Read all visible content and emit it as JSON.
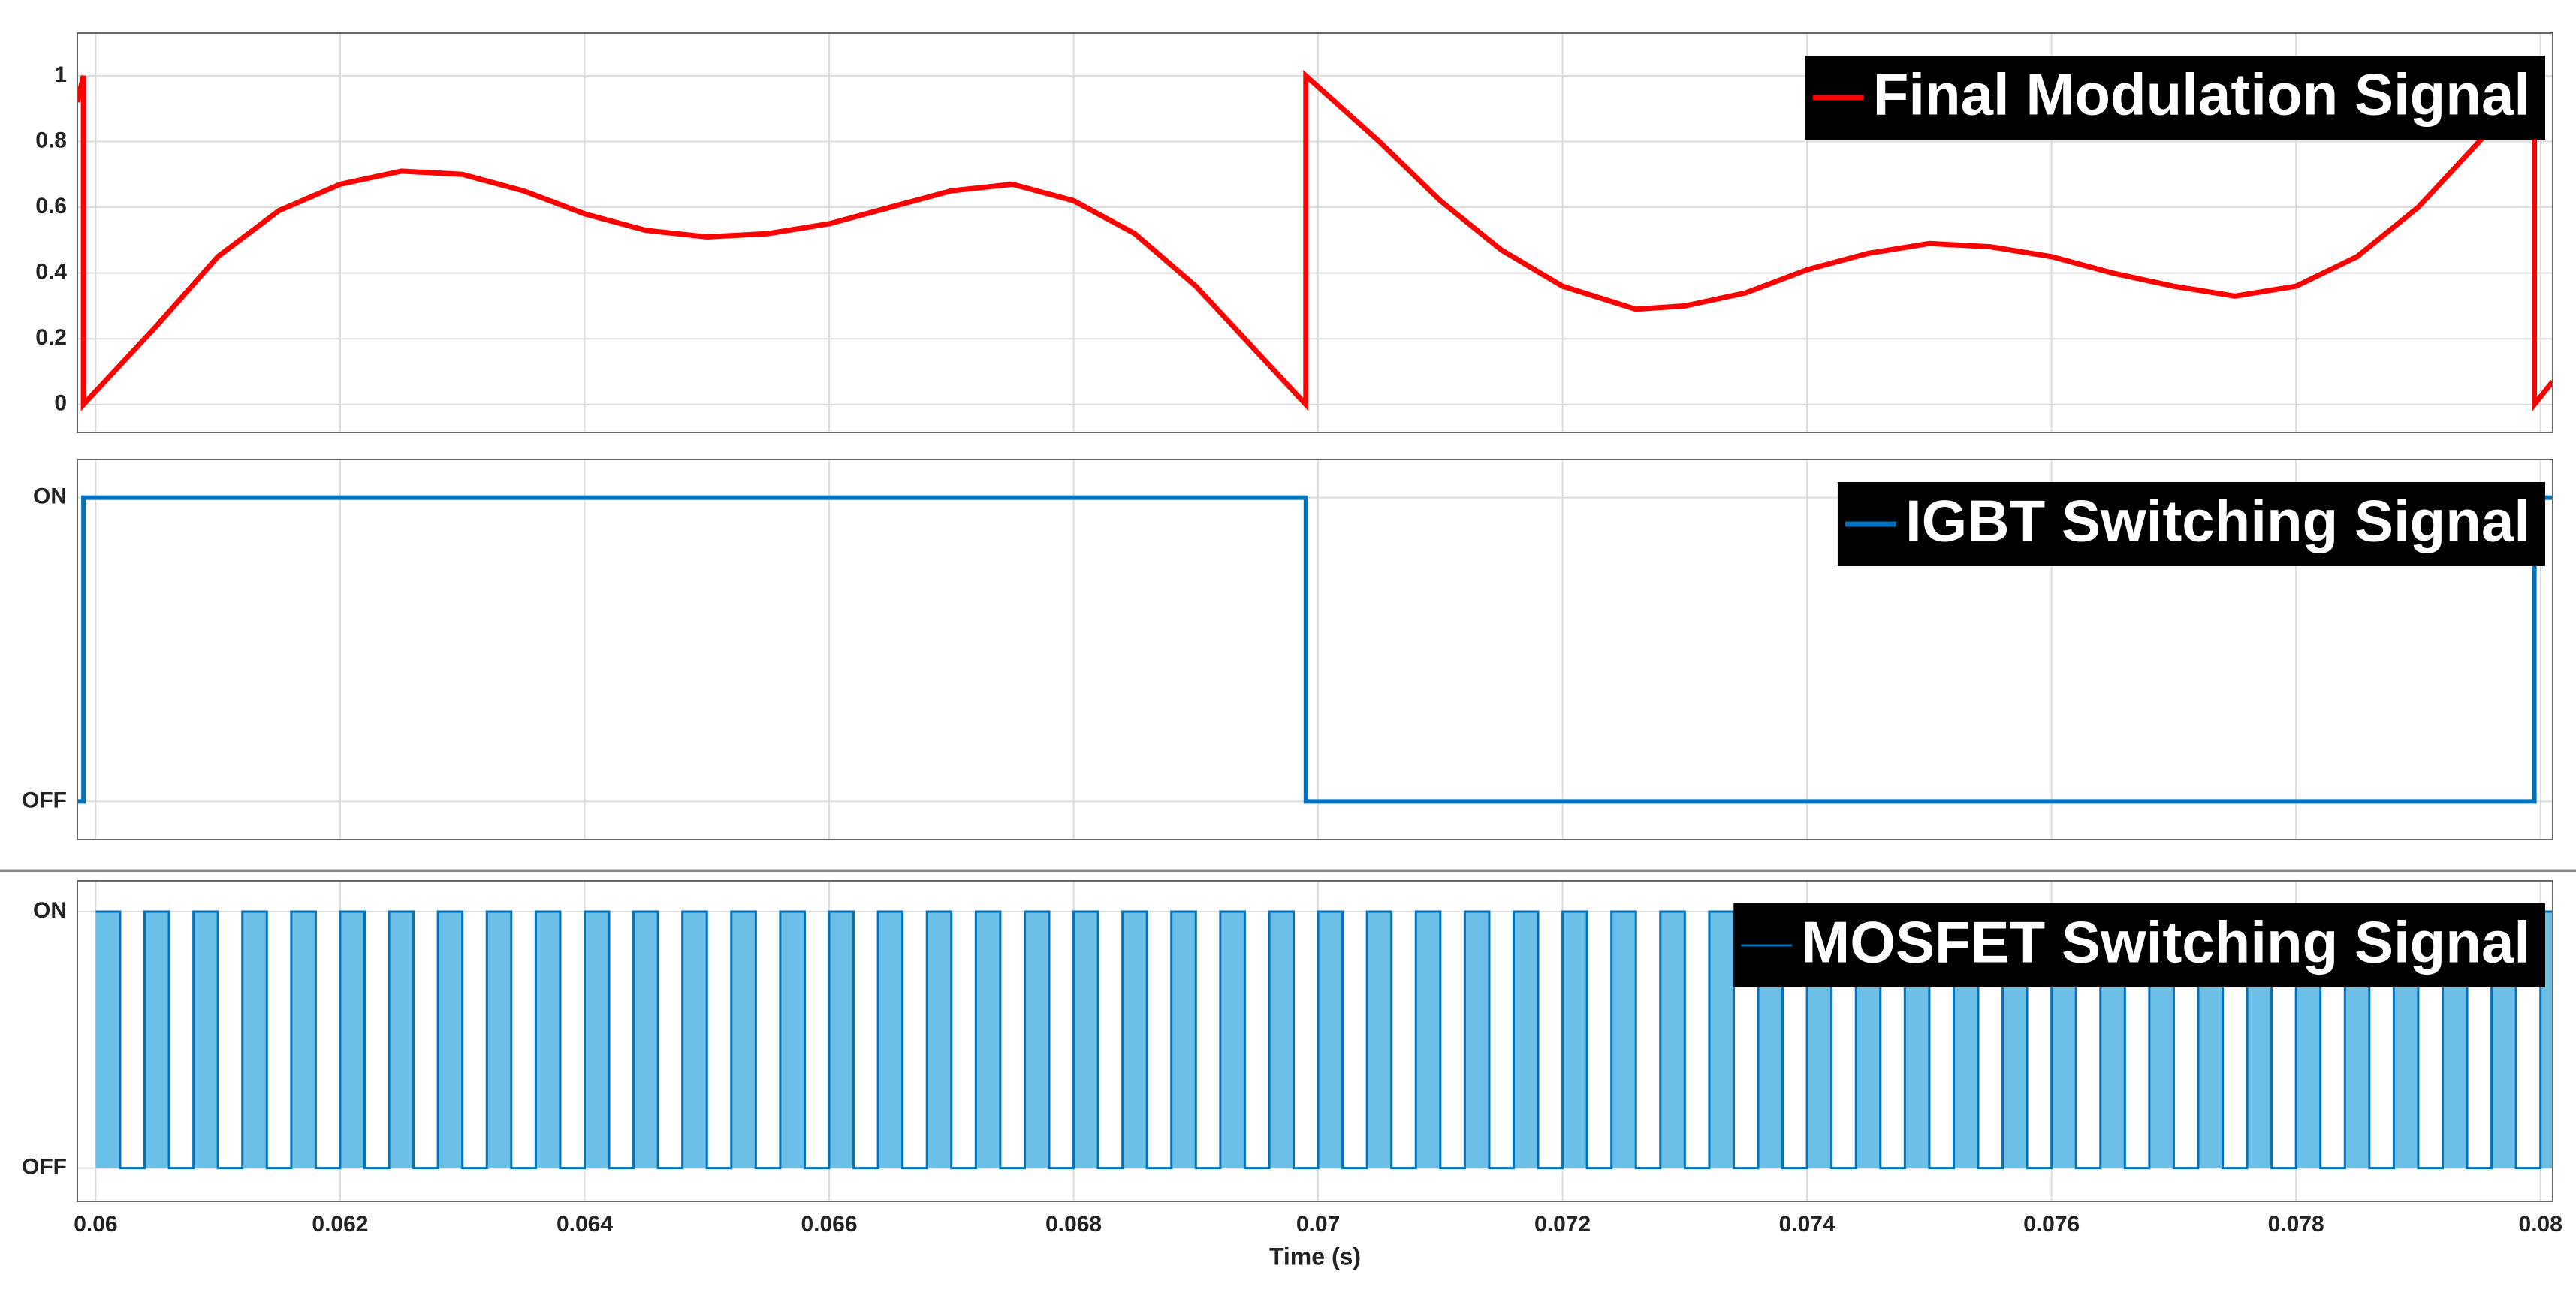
{
  "chart_data": [
    {
      "type": "line",
      "ylim": [
        -0.085,
        1.13
      ],
      "yticks": [
        0,
        0.2,
        0.4,
        0.6,
        0.8,
        1
      ],
      "xlim": [
        0.05985,
        0.0801
      ],
      "grid": true,
      "legend": "upper right",
      "series": [
        {
          "name": "Final Modulation Signal",
          "color": "#ff0000",
          "x": [
            0.05985,
            0.0599,
            0.0599,
            0.0605,
            0.061,
            0.0615,
            0.062,
            0.0625,
            0.063,
            0.0635,
            0.064,
            0.0645,
            0.065,
            0.0655,
            0.066,
            0.0665,
            0.067,
            0.0675,
            0.068,
            0.0685,
            0.069,
            0.0695,
            0.0699,
            0.0699,
            0.0705,
            0.071,
            0.0715,
            0.072,
            0.0726,
            0.073,
            0.0735,
            0.074,
            0.0745,
            0.075,
            0.0755,
            0.076,
            0.0765,
            0.077,
            0.0775,
            0.078,
            0.0785,
            0.079,
            0.0795,
            0.07995,
            0.07995,
            0.0801
          ],
          "values": [
            0.92,
            1,
            0,
            0.24,
            0.45,
            0.59,
            0.67,
            0.71,
            0.7,
            0.65,
            0.58,
            0.53,
            0.51,
            0.52,
            0.55,
            0.6,
            0.65,
            0.67,
            0.62,
            0.52,
            0.36,
            0.16,
            0,
            1,
            0.8,
            0.62,
            0.47,
            0.36,
            0.29,
            0.3,
            0.34,
            0.41,
            0.46,
            0.49,
            0.48,
            0.45,
            0.4,
            0.36,
            0.33,
            0.36,
            0.45,
            0.6,
            0.8,
            1,
            0,
            0.07
          ]
        }
      ]
    },
    {
      "type": "step",
      "ylim": [
        -0.125,
        1.125
      ],
      "yticks": [
        {
          "value": 1,
          "label": "ON"
        },
        {
          "value": 0,
          "label": "OFF"
        }
      ],
      "xlim": [
        0.05985,
        0.0801
      ],
      "grid": true,
      "legend": "upper right",
      "series": [
        {
          "name": "IGBT Switching Signal",
          "color": "#0072bd",
          "x": [
            0.05985,
            0.0599,
            0.0699,
            0.07995
          ],
          "values": [
            0,
            1,
            0,
            1
          ]
        }
      ]
    },
    {
      "type": "pulse",
      "ylim": [
        -0.13,
        1.12
      ],
      "yticks": [
        {
          "value": 1,
          "label": "ON"
        },
        {
          "value": 0,
          "label": "OFF"
        }
      ],
      "xlim": [
        0.05985,
        0.0801
      ],
      "grid": true,
      "legend": "upper right",
      "xticks": [
        0.06,
        0.062,
        0.064,
        0.066,
        0.068,
        0.07,
        0.072,
        0.074,
        0.076,
        0.078,
        0.08
      ],
      "xlabel": "Time (s)",
      "series": [
        {
          "name": "MOSFET Switching Signal",
          "color": "#0072bd",
          "fill": "#6cbfe6",
          "x": [
            0.06,
            0.0602,
            0.0604,
            0.0606,
            0.0608,
            0.061,
            0.0612,
            0.0614,
            0.0616,
            0.0618,
            0.062,
            0.0622,
            0.0624,
            0.0626,
            0.0628,
            0.063,
            0.0632,
            0.0634,
            0.0636,
            0.0638,
            0.064,
            0.0642,
            0.0644,
            0.0646,
            0.0648,
            0.065,
            0.0652,
            0.0654,
            0.0656,
            0.0658,
            0.066,
            0.0662,
            0.0664,
            0.0666,
            0.0668,
            0.067,
            0.0672,
            0.0674,
            0.0676,
            0.0678,
            0.068,
            0.0682,
            0.0684,
            0.0686,
            0.0688,
            0.069,
            0.0692,
            0.0694,
            0.0696,
            0.0698,
            0.07,
            0.0702,
            0.0704,
            0.0706,
            0.0708,
            0.071,
            0.0712,
            0.0714,
            0.0716,
            0.0718,
            0.072,
            0.0722,
            0.0724,
            0.0726,
            0.0728,
            0.073,
            0.0732,
            0.0734,
            0.0736,
            0.0738,
            0.074,
            0.0742,
            0.0744,
            0.0746,
            0.0748,
            0.075,
            0.0752,
            0.0754,
            0.0756,
            0.0758,
            0.076,
            0.0762,
            0.0764,
            0.0766,
            0.0768,
            0.077,
            0.0772,
            0.0774,
            0.0776,
            0.0778,
            0.078,
            0.0782,
            0.0784,
            0.0786,
            0.0788,
            0.079,
            0.0792,
            0.0794,
            0.0796,
            0.0798,
            0.08
          ],
          "values": [
            1,
            0,
            1,
            0,
            1,
            0,
            1,
            0,
            1,
            0,
            1,
            0,
            1,
            0,
            1,
            0,
            1,
            0,
            1,
            0,
            1,
            0,
            1,
            0,
            1,
            0,
            1,
            0,
            1,
            0,
            1,
            0,
            1,
            0,
            1,
            0,
            1,
            0,
            1,
            0,
            1,
            0,
            1,
            0,
            1,
            0,
            1,
            0,
            1,
            0,
            1,
            0,
            1,
            0,
            1,
            0,
            1,
            0,
            1,
            0,
            1,
            0,
            1,
            0,
            1,
            0,
            1,
            0,
            1,
            0,
            1,
            0,
            1,
            0,
            1,
            0,
            1,
            0,
            1,
            0,
            1,
            0,
            1,
            0,
            1,
            0,
            1,
            0,
            1,
            0,
            1,
            0,
            1,
            0,
            1,
            0,
            1,
            0,
            1,
            0,
            1
          ]
        }
      ]
    }
  ]
}
